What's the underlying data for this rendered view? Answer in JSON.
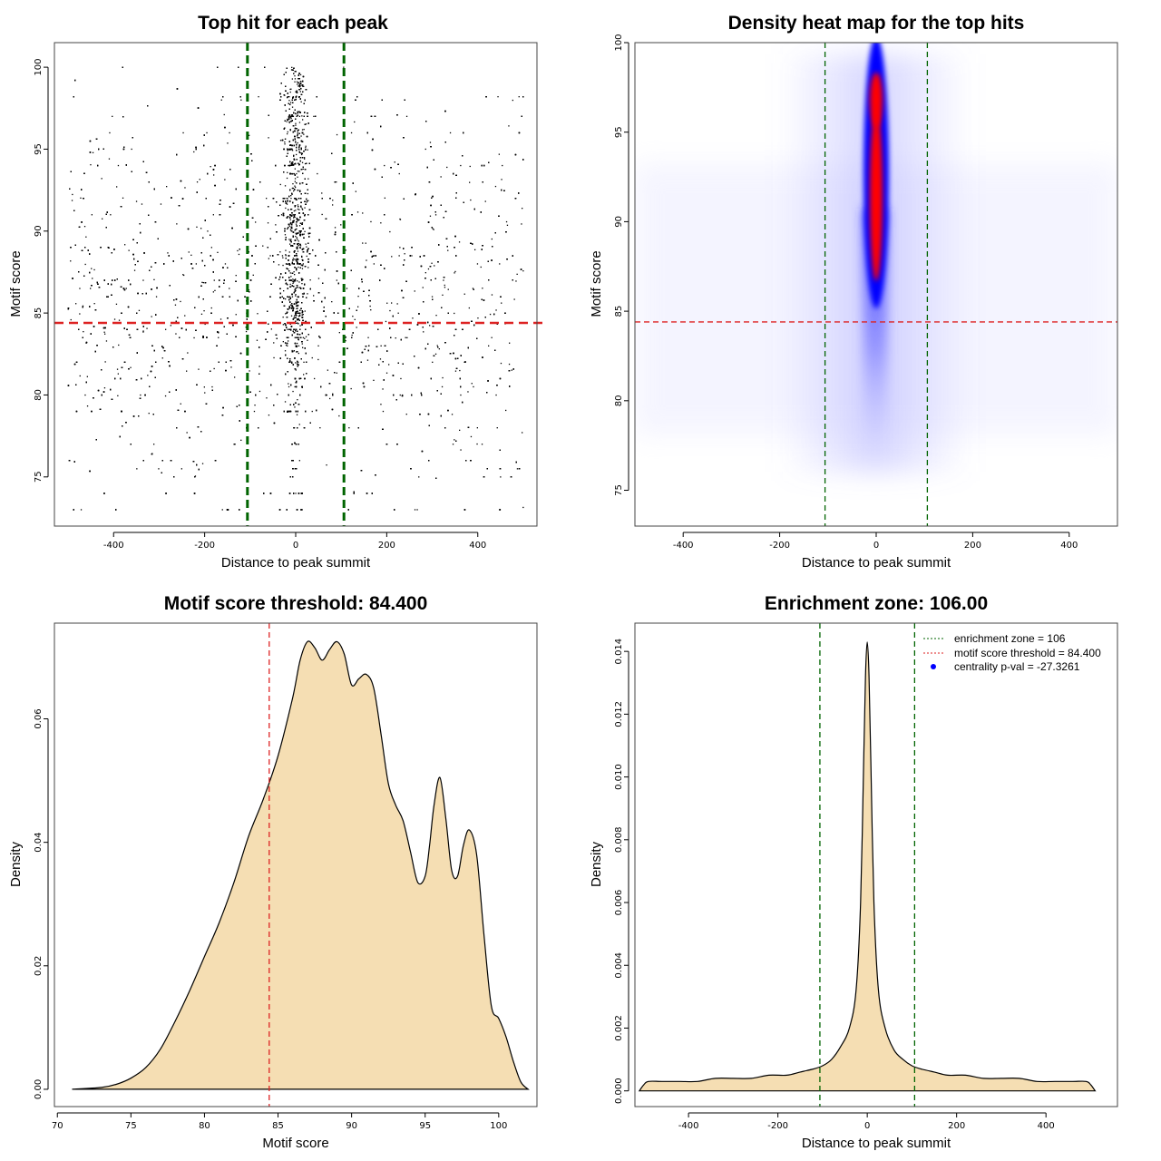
{
  "colors": {
    "threshold": "#dd2222",
    "zone": "#006400",
    "fill": "#f5deb3",
    "heat_low": "#ffffff",
    "heat_mid": "#0000ff",
    "heat_high": "#ff0000",
    "legend_dot": "#0000ff"
  },
  "chart_data": [
    {
      "id": "scatter",
      "type": "scatter",
      "title": "Top hit for each peak",
      "xlabel": "Distance to peak summit",
      "ylabel": "Motif score",
      "xlim": [
        -530,
        530
      ],
      "ylim": [
        72,
        101.5
      ],
      "xticks": [
        -400,
        -200,
        0,
        200,
        400
      ],
      "yticks": [
        75,
        80,
        85,
        90,
        95,
        100
      ],
      "threshold": 84.4,
      "zone": [
        -106,
        106
      ],
      "point_count": 9000,
      "distribution_note": "points concentrated near distance 0 and high scores; uniform background spread from -500 to 500"
    },
    {
      "id": "heatmap",
      "type": "heatmap",
      "title": "Density heat map for the top hits",
      "xlabel": "Distance to peak summit",
      "ylabel": "Motif score",
      "xlim": [
        -500,
        500
      ],
      "ylim": [
        73,
        100
      ],
      "xticks": [
        -400,
        -200,
        0,
        200,
        400
      ],
      "yticks": [
        75,
        80,
        85,
        90,
        95,
        100
      ],
      "threshold": 84.4,
      "zone": [
        -106,
        106
      ],
      "hotspot": {
        "x": 0,
        "y_range": [
          86,
          99
        ],
        "peak_y": [
          91,
          96
        ]
      }
    },
    {
      "id": "score-density",
      "type": "area",
      "title": "Motif score threshold: 84.400",
      "xlabel": "Motif score",
      "ylabel": "Density",
      "xlim": [
        69.8,
        102.6
      ],
      "ylim": [
        -0.0028,
        0.0755
      ],
      "xticks": [
        70,
        75,
        80,
        85,
        90,
        95,
        100
      ],
      "yticks": [
        0.0,
        0.02,
        0.04,
        0.06
      ],
      "ytick_labels": [
        "0.00",
        "0.02",
        "0.04",
        "0.06"
      ],
      "threshold": 84.4,
      "x": [
        71,
        73,
        74,
        75,
        76,
        77,
        78,
        79,
        80,
        81,
        82,
        83,
        84,
        85,
        86,
        86.5,
        87,
        87.5,
        88,
        88.5,
        89,
        89.5,
        90,
        90.5,
        91,
        91.5,
        92,
        92.5,
        93,
        93.5,
        94,
        94.5,
        95,
        95.3,
        95.6,
        96,
        96.4,
        96.8,
        97.2,
        97.6,
        98,
        98.5,
        99,
        99.5,
        100,
        100.5,
        101,
        101.5,
        102
      ],
      "y": [
        0,
        0.0003,
        0.0008,
        0.0018,
        0.0035,
        0.0065,
        0.011,
        0.016,
        0.0215,
        0.027,
        0.0335,
        0.041,
        0.047,
        0.054,
        0.0635,
        0.0695,
        0.0725,
        0.0715,
        0.0695,
        0.0712,
        0.0725,
        0.0705,
        0.0655,
        0.0665,
        0.0672,
        0.065,
        0.0575,
        0.0495,
        0.046,
        0.0435,
        0.0385,
        0.0335,
        0.0345,
        0.0395,
        0.046,
        0.0505,
        0.044,
        0.0355,
        0.0345,
        0.0395,
        0.042,
        0.038,
        0.025,
        0.0135,
        0.0115,
        0.0085,
        0.0045,
        0.0012,
        0
      ]
    },
    {
      "id": "distance-density",
      "type": "area",
      "title": "Enrichment zone: 106.00",
      "xlabel": "Distance to peak summit",
      "ylabel": "Density",
      "xlim": [
        -520,
        560
      ],
      "ylim": [
        -0.0005,
        0.0149
      ],
      "xticks": [
        -400,
        -200,
        0,
        200,
        400
      ],
      "yticks": [
        0.0,
        0.002,
        0.004,
        0.006,
        0.008,
        0.01,
        0.012,
        0.014
      ],
      "ytick_labels": [
        "0.000",
        "0.002",
        "0.004",
        "0.006",
        "0.008",
        "0.010",
        "0.012",
        "0.014"
      ],
      "zone": [
        -106,
        106
      ],
      "x": [
        -510,
        -500,
        -490,
        -460,
        -420,
        -380,
        -340,
        -300,
        -260,
        -220,
        -180,
        -150,
        -120,
        -100,
        -80,
        -60,
        -40,
        -25,
        -15,
        -8,
        -4,
        0,
        4,
        8,
        15,
        25,
        40,
        60,
        80,
        100,
        120,
        150,
        180,
        220,
        260,
        300,
        340,
        380,
        420,
        460,
        490,
        500,
        510
      ],
      "y": [
        0,
        0.0002,
        0.0003,
        0.0003,
        0.0003,
        0.0003,
        0.0004,
        0.0004,
        0.0004,
        0.0005,
        0.0005,
        0.0006,
        0.0007,
        0.0008,
        0.001,
        0.0014,
        0.002,
        0.0032,
        0.006,
        0.0105,
        0.0132,
        0.0143,
        0.0132,
        0.0105,
        0.006,
        0.0032,
        0.002,
        0.0013,
        0.001,
        0.0008,
        0.0007,
        0.0006,
        0.0005,
        0.0005,
        0.0004,
        0.0004,
        0.0004,
        0.0003,
        0.0003,
        0.0003,
        0.0003,
        0.0002,
        0
      ],
      "legend": {
        "enrichment_zone": "enrichment zone = 106",
        "threshold": "motif score threshold = 84.400",
        "centrality": "centrality p-val = -27.3261"
      }
    }
  ]
}
